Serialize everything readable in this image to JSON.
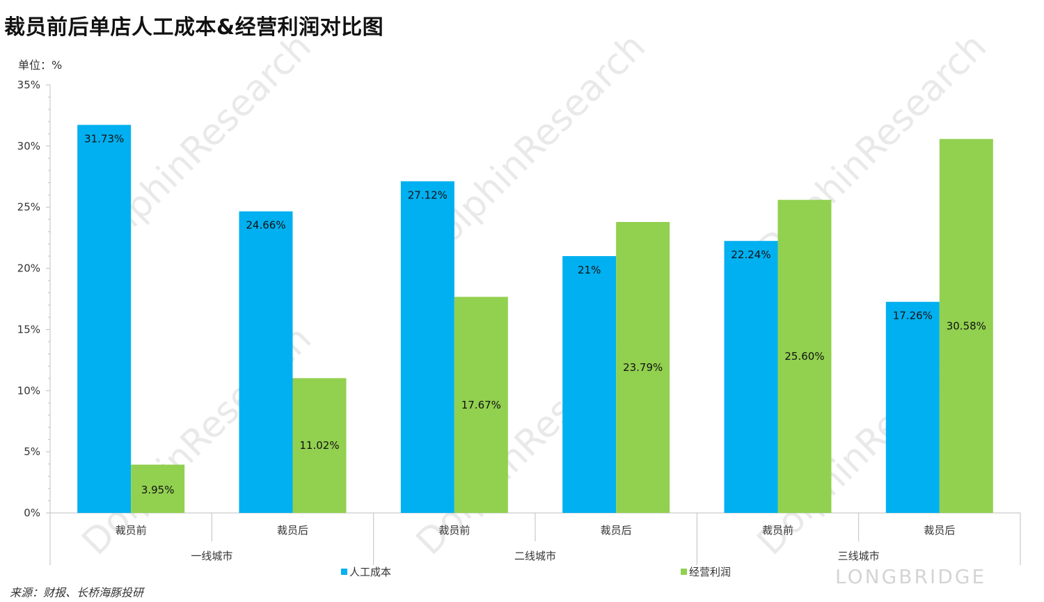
{
  "title": "裁员前后单店人工成本&经营利润对比图",
  "unit_label": "单位：%",
  "source": "来源：财报、长桥海豚投研",
  "watermark": "LONGBRIDGE",
  "colors": {
    "labor": "#00B0F0",
    "profit": "#92D050"
  },
  "chart_data": {
    "type": "bar",
    "y_ticks": [
      "0%",
      "5%",
      "10%",
      "15%",
      "20%",
      "25%",
      "30%",
      "35%"
    ],
    "ylim": [
      0,
      35
    ],
    "groups": [
      {
        "name": "一线城市",
        "categories": [
          "裁员前",
          "裁员后"
        ]
      },
      {
        "name": "二线城市",
        "categories": [
          "裁员前",
          "裁员后"
        ]
      },
      {
        "name": "三线城市",
        "categories": [
          "裁员前",
          "裁员后"
        ]
      }
    ],
    "series": [
      {
        "name": "人工成本",
        "color": "#00B0F0",
        "values": [
          31.73,
          24.66,
          27.12,
          21,
          22.24,
          17.26
        ],
        "labels": [
          "31.73%",
          "24.66%",
          "27.12%",
          "21%",
          "22.24%",
          "17.26%"
        ]
      },
      {
        "name": "经营利润",
        "color": "#92D050",
        "values": [
          3.95,
          11.02,
          17.67,
          23.79,
          25.6,
          30.58
        ],
        "labels": [
          "3.95%",
          "11.02%",
          "17.67%",
          "23.79%",
          "25.60%",
          "30.58%"
        ]
      }
    ]
  }
}
